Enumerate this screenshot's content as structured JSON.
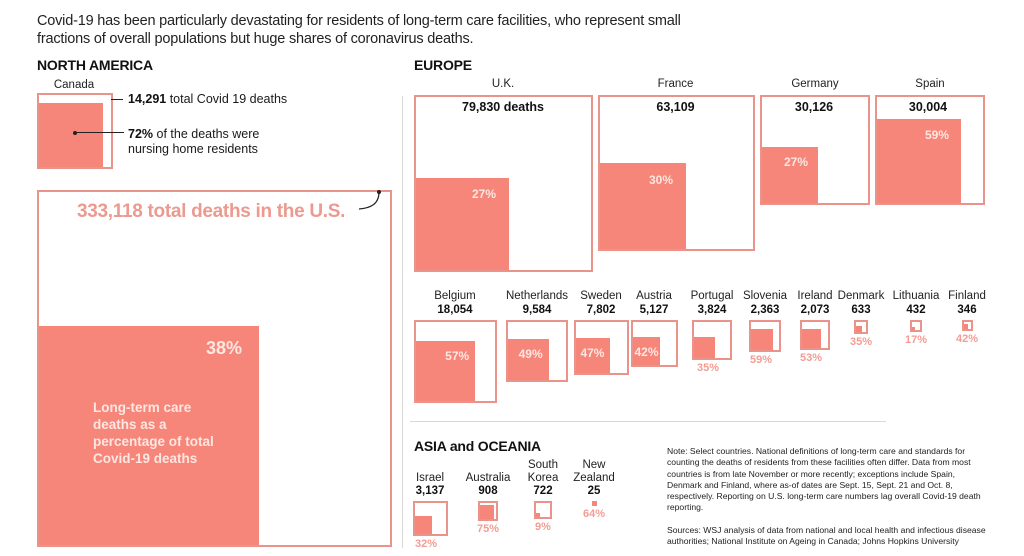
{
  "intro": "Covid-19 has been particularly devastating for residents of long-term care facilities, who represent small fractions of overall populations but huge shares of coronavirus deaths.",
  "sections": {
    "north_america": "NORTH AMERICA",
    "europe": "EUROPE",
    "asia": "ASIA and OCEANIA"
  },
  "canada": {
    "name": "Canada",
    "total_bold": "14,291",
    "total_rest": " total Covid 19 deaths",
    "pct_bold": "72%",
    "pct_rest_line1": " of the deaths were",
    "pct_rest_line2": "nursing home residents"
  },
  "us": {
    "total_label": "333,118 total deaths in the U.S.",
    "pct": "38%",
    "legend": "Long-term care deaths as a percentage of total Covid-19 deaths"
  },
  "note": "Note: Select countries. National definitions of long-term care and standards for counting the deaths of residents from these facilities often differ. Data from most countries is from late November or more recently; exceptions include Spain, Denmark and Finland, where as-of dates are Sept. 15, Sept. 21 and Oct. 8, respectively. Reporting on U.S. long-term care numbers lag overall Covid-19 death reporting.",
  "sources": "Sources: WSJ analysis of data from national and local health and infectious disease authorities; National Institute on Ageing in Canada; Johns Hopkins University",
  "colors": {
    "fill": "#f7867a",
    "border": "#e9938a",
    "label_out": "#f29d94"
  },
  "chart_data": {
    "type": "proportional-area",
    "title": "Long-term care deaths as a percentage of total Covid-19 deaths",
    "unit_total": "total Covid-19 deaths",
    "unit_share": "% long-term care",
    "regions": [
      {
        "region": "North America",
        "countries": [
          {
            "name": "U.S.",
            "total": 333118,
            "total_label": "333,118",
            "pct": 38
          },
          {
            "name": "Canada",
            "total": 14291,
            "total_label": "14,291",
            "pct": 72
          }
        ]
      },
      {
        "region": "Europe",
        "countries": [
          {
            "name": "U.K.",
            "total": 79830,
            "total_label": "79,830 deaths",
            "pct": 27
          },
          {
            "name": "France",
            "total": 63109,
            "total_label": "63,109",
            "pct": 30
          },
          {
            "name": "Germany",
            "total": 30126,
            "total_label": "30,126",
            "pct": 27
          },
          {
            "name": "Spain",
            "total": 30004,
            "total_label": "30,004",
            "pct": 59
          },
          {
            "name": "Belgium",
            "total": 18054,
            "total_label": "18,054",
            "pct": 57
          },
          {
            "name": "Netherlands",
            "total": 9584,
            "total_label": "9,584",
            "pct": 49
          },
          {
            "name": "Sweden",
            "total": 7802,
            "total_label": "7,802",
            "pct": 47
          },
          {
            "name": "Austria",
            "total": 5127,
            "total_label": "5,127",
            "pct": 42
          },
          {
            "name": "Portugal",
            "total": 3824,
            "total_label": "3,824",
            "pct": 35
          },
          {
            "name": "Slovenia",
            "total": 2363,
            "total_label": "2,363",
            "pct": 59
          },
          {
            "name": "Ireland",
            "total": 2073,
            "total_label": "2,073",
            "pct": 53
          },
          {
            "name": "Denmark",
            "total": 633,
            "total_label": "633",
            "pct": 35
          },
          {
            "name": "Lithuania",
            "total": 432,
            "total_label": "432",
            "pct": 17
          },
          {
            "name": "Finland",
            "total": 346,
            "total_label": "346",
            "pct": 42
          }
        ]
      },
      {
        "region": "Asia and Oceania",
        "countries": [
          {
            "name": "Israel",
            "total": 3137,
            "total_label": "3,137",
            "pct": 32
          },
          {
            "name": "Australia",
            "total": 908,
            "total_label": "908",
            "pct": 75
          },
          {
            "name": "South Korea",
            "total": 722,
            "total_label": "722",
            "pct": 9
          },
          {
            "name": "New Zealand",
            "total": 25,
            "total_label": "25",
            "pct": 64
          }
        ]
      }
    ]
  }
}
